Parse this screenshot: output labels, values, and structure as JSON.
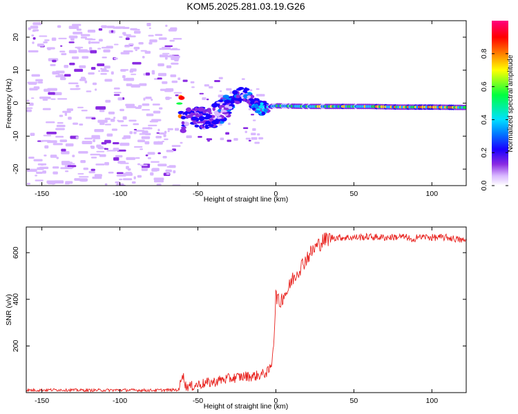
{
  "title": "KOM5.2025.281.03.19.G26",
  "chart_data": [
    {
      "type": "heatmap",
      "name": "spectrogram",
      "xlabel": "Height of straight line (km)",
      "ylabel": "Frequency (Hz)",
      "xlim": [
        -160,
        122
      ],
      "ylim": [
        -25,
        25
      ],
      "xticks": [
        -150,
        -100,
        -50,
        0,
        50,
        100
      ],
      "yticks": [
        -20,
        -10,
        0,
        10,
        20
      ],
      "colorbar": {
        "label": "Normalized spectral amplitude",
        "range": [
          0,
          1
        ],
        "ticks": [
          0.0,
          0.2,
          0.4,
          0.6,
          0.8
        ],
        "colormap": [
          "#ffffff",
          "#d9b8ff",
          "#8a2be2",
          "#1a00ff",
          "#0080ff",
          "#00e0ff",
          "#00ff40",
          "#ffff00",
          "#ff8000",
          "#ff0000",
          "#ff0080"
        ]
      },
      "ridge": [
        {
          "x": -60,
          "y": -5.5,
          "amp": 0.2
        },
        {
          "x": -50,
          "y": -5,
          "amp": 0.22
        },
        {
          "x": -40,
          "y": -4,
          "amp": 0.25
        },
        {
          "x": -32,
          "y": -1.5,
          "amp": 0.28
        },
        {
          "x": -25,
          "y": 2,
          "amp": 0.35
        },
        {
          "x": -20,
          "y": 3,
          "amp": 0.3
        },
        {
          "x": -15,
          "y": 0.5,
          "amp": 0.4
        },
        {
          "x": -10,
          "y": -1.5,
          "amp": 0.35
        },
        {
          "x": 0,
          "y": -0.8,
          "amp": 0.55
        },
        {
          "x": 20,
          "y": -1,
          "amp": 0.6
        },
        {
          "x": 40,
          "y": -1,
          "amp": 0.65
        },
        {
          "x": 60,
          "y": -1,
          "amp": 0.7
        },
        {
          "x": 80,
          "y": -1.2,
          "amp": 0.75
        },
        {
          "x": 100,
          "y": -1.2,
          "amp": 0.8
        },
        {
          "x": 120,
          "y": -1.3,
          "amp": 0.75
        }
      ]
    },
    {
      "type": "line",
      "name": "snr",
      "xlabel": "Height of straight line (km)",
      "ylabel": "SNR (v/v)",
      "xlim": [
        -160,
        122
      ],
      "ylim": [
        0,
        710
      ],
      "xticks": [
        -150,
        -100,
        -50,
        0,
        50,
        100
      ],
      "yticks": [
        200,
        400,
        600
      ],
      "color": "#e8211d",
      "series": [
        {
          "name": "SNR",
          "x": [
            -160,
            -140,
            -120,
            -100,
            -80,
            -62,
            -60,
            -58,
            -55,
            -50,
            -45,
            -40,
            -35,
            -30,
            -25,
            -20,
            -15,
            -10,
            -5,
            -3,
            -1,
            0,
            2,
            5,
            8,
            10,
            12,
            15,
            20,
            25,
            30,
            35,
            40,
            50,
            60,
            70,
            80,
            85,
            88,
            90,
            92,
            95,
            100,
            110,
            122
          ],
          "y": [
            10,
            12,
            10,
            11,
            10,
            12,
            90,
            30,
            25,
            35,
            40,
            45,
            55,
            60,
            65,
            70,
            70,
            75,
            90,
            110,
            250,
            430,
            380,
            420,
            440,
            480,
            500,
            530,
            580,
            620,
            650,
            665,
            665,
            665,
            668,
            665,
            668,
            665,
            640,
            675,
            665,
            668,
            665,
            665,
            650
          ]
        }
      ]
    }
  ]
}
